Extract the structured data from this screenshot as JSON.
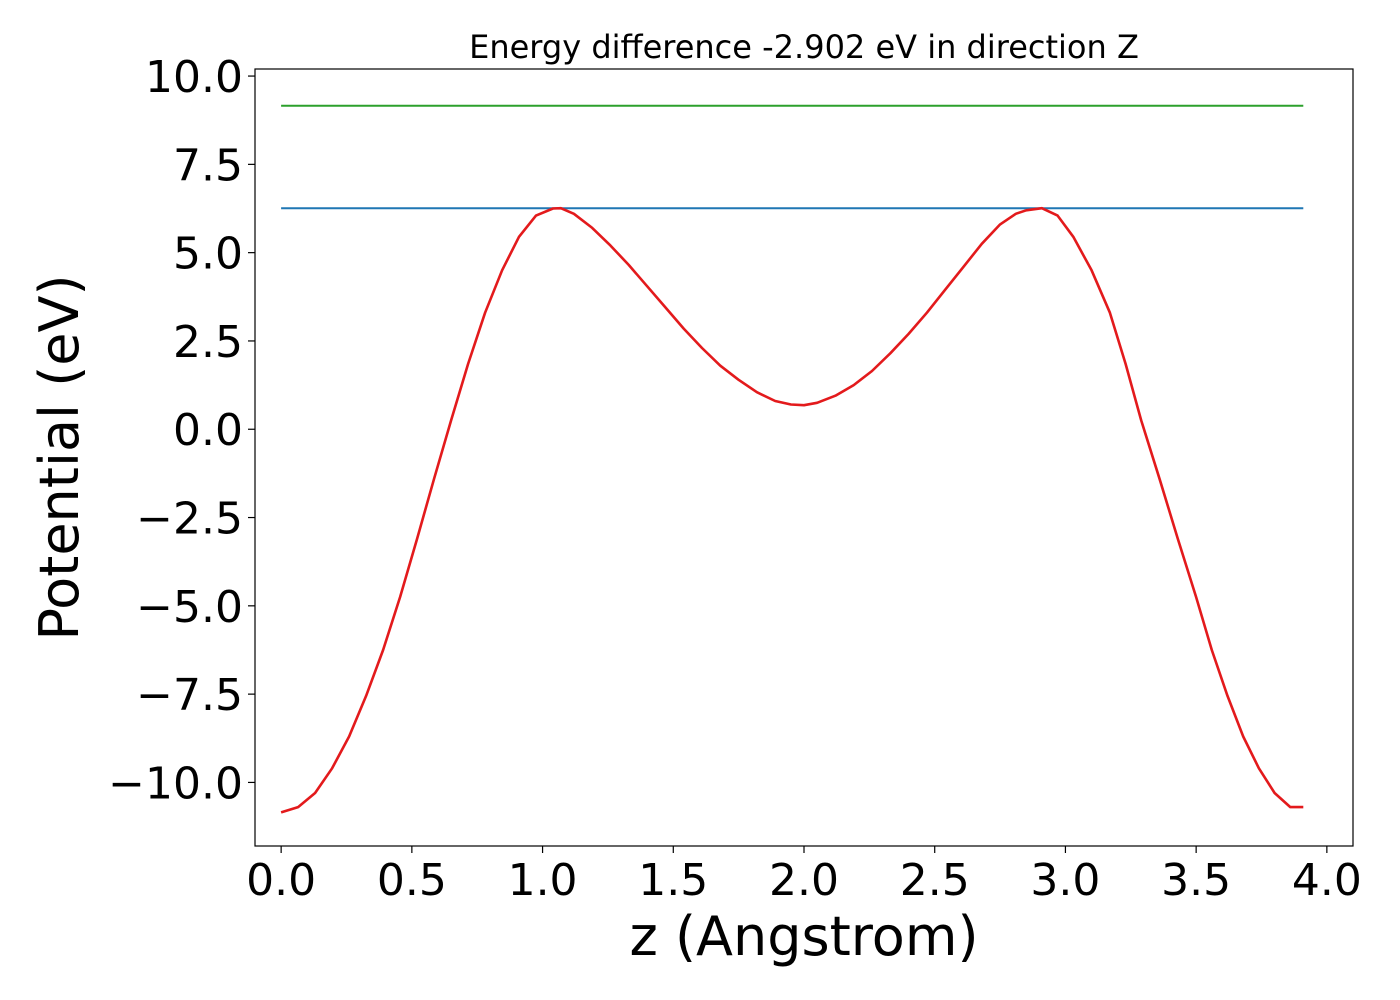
{
  "chart_data": {
    "type": "line",
    "title": "Energy difference -2.902 eV in direction Z",
    "xlabel": "z (Angstrom)",
    "ylabel": "Potential (eV)",
    "xlim": [
      -0.1,
      4.1
    ],
    "ylim": [
      -11.8,
      10.2
    ],
    "xticks": [
      0.0,
      0.5,
      1.0,
      1.5,
      2.0,
      2.5,
      3.0,
      3.5,
      4.0
    ],
    "xtick_labels": [
      "0.0",
      "0.5",
      "1.0",
      "1.5",
      "2.0",
      "2.5",
      "3.0",
      "3.5",
      "4.0"
    ],
    "yticks": [
      10.0,
      7.5,
      5.0,
      2.5,
      0.0,
      -2.5,
      -5.0,
      -7.5,
      -10.0
    ],
    "ytick_labels": [
      "10.0",
      "7.5",
      "5.0",
      "2.5",
      "0.0",
      "−2.5",
      "−5.0",
      "−7.5",
      "−10.0"
    ],
    "grid": false,
    "series": [
      {
        "color": "#2ca02c",
        "x": [
          0.0,
          3.91
        ],
        "y": [
          9.16,
          9.16
        ]
      },
      {
        "color": "#1f77b4",
        "x": [
          0.0,
          3.91
        ],
        "y": [
          6.26,
          6.26
        ]
      },
      {
        "color": "#e31a1c",
        "x": [
          0.0,
          0.065,
          0.13,
          0.195,
          0.26,
          0.325,
          0.39,
          0.455,
          0.52,
          0.585,
          0.65,
          0.715,
          0.78,
          0.845,
          0.91,
          0.975,
          1.04,
          1.07,
          1.12,
          1.19,
          1.26,
          1.33,
          1.4,
          1.47,
          1.54,
          1.61,
          1.68,
          1.75,
          1.82,
          1.89,
          1.95,
          2.0,
          2.05,
          2.12,
          2.19,
          2.26,
          2.33,
          2.4,
          2.47,
          2.54,
          2.61,
          2.68,
          2.75,
          2.81,
          2.85,
          2.91,
          2.97,
          3.03,
          3.1,
          3.17,
          3.23,
          3.29,
          3.36,
          3.43,
          3.5,
          3.56,
          3.62,
          3.68,
          3.74,
          3.8,
          3.86,
          3.91
        ],
        "y": [
          -10.85,
          -10.7,
          -10.3,
          -9.6,
          -8.7,
          -7.55,
          -6.25,
          -4.75,
          -3.1,
          -1.4,
          0.25,
          1.85,
          3.3,
          4.5,
          5.45,
          6.05,
          6.25,
          6.26,
          6.1,
          5.7,
          5.2,
          4.65,
          4.05,
          3.45,
          2.85,
          2.3,
          1.8,
          1.4,
          1.05,
          0.8,
          0.7,
          0.68,
          0.75,
          0.95,
          1.25,
          1.65,
          2.15,
          2.7,
          3.3,
          3.95,
          4.6,
          5.25,
          5.8,
          6.1,
          6.2,
          6.26,
          6.05,
          5.45,
          4.5,
          3.3,
          1.85,
          0.25,
          -1.4,
          -3.1,
          -4.75,
          -6.25,
          -7.55,
          -8.7,
          -9.6,
          -10.3,
          -10.7,
          -10.7
        ]
      }
    ]
  }
}
